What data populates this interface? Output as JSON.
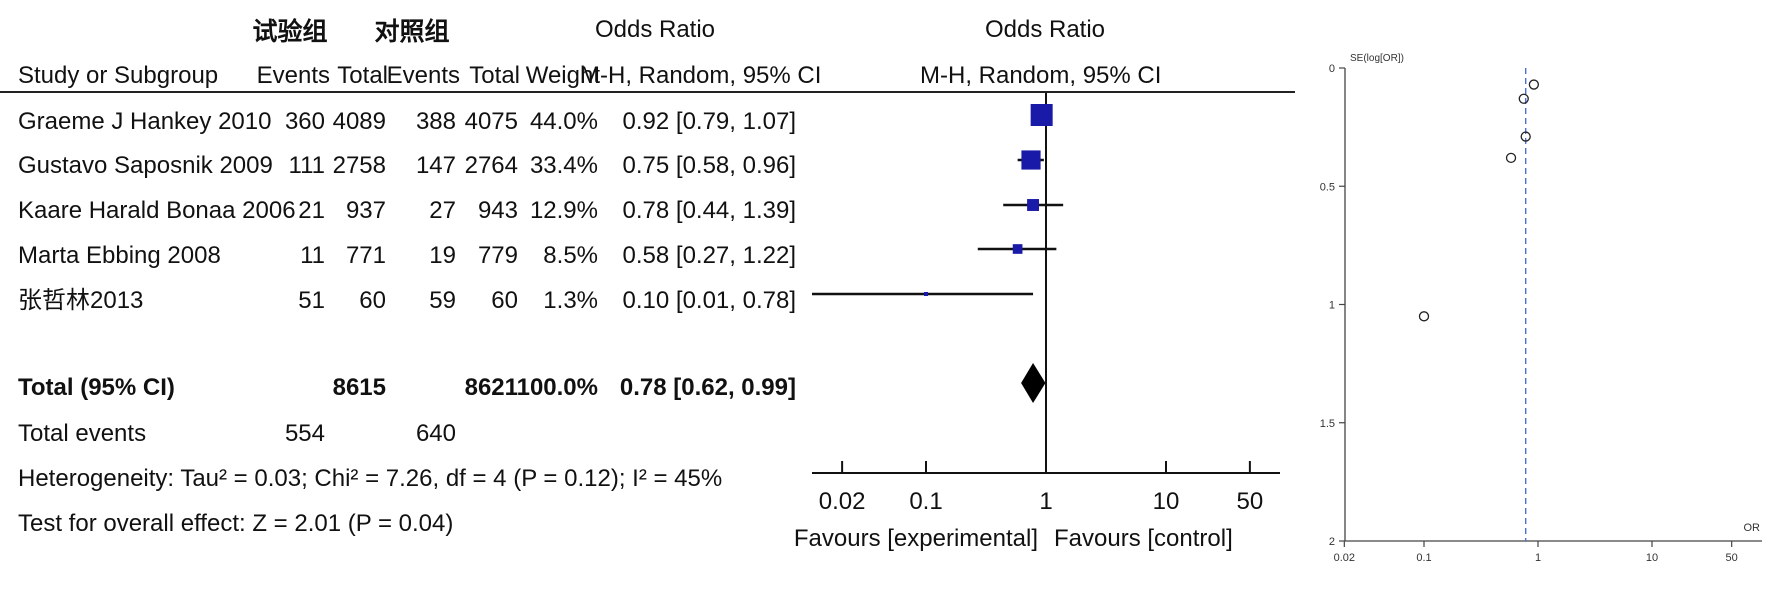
{
  "headers": {
    "group_exp": "试验组",
    "group_ctrl": "对照组",
    "or_left": "Odds Ratio",
    "or_right": "Odds Ratio",
    "study": "Study or Subgroup",
    "events": "Events",
    "total": "Total",
    "weight": "Weight",
    "method_left": "M-H, Random, 95% CI",
    "method_right": "M-H, Random, 95% CI"
  },
  "studies": [
    {
      "name": "Graeme J Hankey 2010",
      "e_events": "360",
      "e_total": "4089",
      "c_events": "388",
      "c_total": "4075",
      "weight": "44.0%",
      "ci_text": "0.92 [0.79, 1.07]"
    },
    {
      "name": "Gustavo Saposnik  2009",
      "e_events": "111",
      "e_total": "2758",
      "c_events": "147",
      "c_total": "2764",
      "weight": "33.4%",
      "ci_text": "0.75 [0.58, 0.96]"
    },
    {
      "name": "Kaare Harald Bonaa 2006",
      "e_events": "21",
      "e_total": "937",
      "c_events": "27",
      "c_total": "943",
      "weight": "12.9%",
      "ci_text": "0.78 [0.44, 1.39]"
    },
    {
      "name": "Marta Ebbing 2008",
      "e_events": "11",
      "e_total": "771",
      "c_events": "19",
      "c_total": "779",
      "weight": "8.5%",
      "ci_text": "0.58 [0.27, 1.22]"
    },
    {
      "name": "张哲林2013",
      "e_events": "51",
      "e_total": "60",
      "c_events": "59",
      "c_total": "60",
      "weight": "1.3%",
      "ci_text": "0.10 [0.01, 0.78]"
    }
  ],
  "total_row": {
    "label": "Total (95% CI)",
    "e_total": "8615",
    "c_total": "8621",
    "weight": "100.0%",
    "ci_text": "0.78 [0.62, 0.99]"
  },
  "events_row": {
    "label": "Total events",
    "e_events": "554",
    "c_events": "640"
  },
  "heterogeneity": "Heterogeneity: Tau² = 0.03; Chi² = 7.26, df = 4 (P = 0.12); I² = 45%",
  "overall_effect": "Test for overall effect: Z = 2.01 (P = 0.04)",
  "chart_data": [
    {
      "type": "forest",
      "scale": "log",
      "xlim": [
        0.01,
        100
      ],
      "xticks": [
        0.02,
        0.1,
        1,
        10,
        50
      ],
      "xtick_labels": [
        "0.02",
        "0.1",
        "1",
        "10",
        "50"
      ],
      "reference_line": 1,
      "favours_left": "Favours [experimental]",
      "favours_right": "Favours [control]",
      "marker_color": "#1a1aa8",
      "studies": [
        {
          "or": 0.92,
          "lo": 0.79,
          "hi": 1.07,
          "weight": 44.0
        },
        {
          "or": 0.75,
          "lo": 0.58,
          "hi": 0.96,
          "weight": 33.4
        },
        {
          "or": 0.78,
          "lo": 0.44,
          "hi": 1.39,
          "weight": 12.9
        },
        {
          "or": 0.58,
          "lo": 0.27,
          "hi": 1.22,
          "weight": 8.5
        },
        {
          "or": 0.1,
          "lo": 0.01,
          "hi": 0.78,
          "weight": 1.3
        }
      ],
      "pooled": {
        "or": 0.78,
        "lo": 0.62,
        "hi": 0.99
      }
    },
    {
      "type": "scatter",
      "ylabel": "SE(log[OR])",
      "xlabel": "OR",
      "x_scale": "log",
      "y_inverted": true,
      "xticks": [
        0.02,
        0.1,
        1,
        10,
        50
      ],
      "xtick_labels": [
        "0.02",
        "0.1",
        "1",
        "10",
        "50"
      ],
      "yticks": [
        0,
        0.5,
        1,
        1.5,
        2
      ],
      "ytick_labels": [
        "0",
        "0.5",
        "1",
        "1.5",
        "2"
      ],
      "ylim": [
        0,
        2
      ],
      "pooled_line": 0.78,
      "points": [
        {
          "x": 0.92,
          "y": 0.07
        },
        {
          "x": 0.75,
          "y": 0.13
        },
        {
          "x": 0.78,
          "y": 0.29
        },
        {
          "x": 0.58,
          "y": 0.38
        },
        {
          "x": 0.1,
          "y": 1.05
        }
      ]
    }
  ]
}
